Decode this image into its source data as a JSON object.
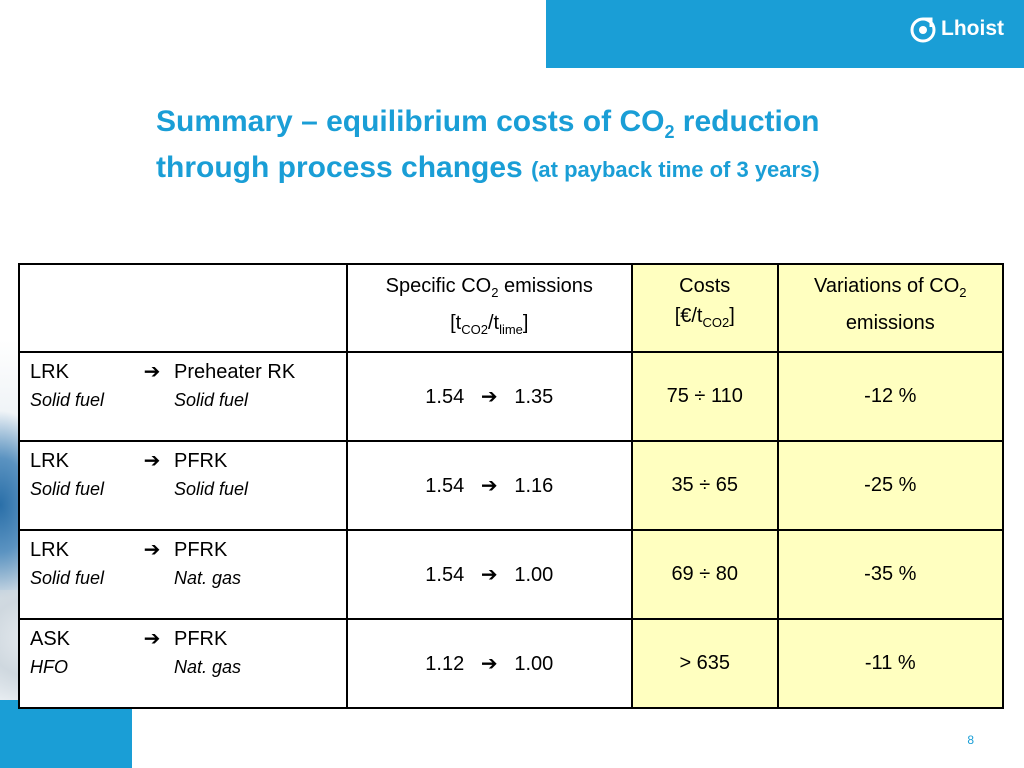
{
  "brand": {
    "logo_text": "Lhoist",
    "color": "#1a9ed6"
  },
  "title": {
    "line1_main": "Summary – equilibrium costs of CO",
    "line1_sub": "2",
    "line1_end": " reduction",
    "line2_main": "through process changes ",
    "line2_small": "(at payback time of 3 years)"
  },
  "table": {
    "headers": {
      "emissions_a": "Specific CO",
      "emissions_a_sub": "2",
      "emissions_a_end": " emissions",
      "emissions_b_open": "[t",
      "emissions_b_sub1": "CO2",
      "emissions_b_mid": "/t",
      "emissions_b_sub2": "lime",
      "emissions_b_close": "]",
      "costs_a": "Costs",
      "costs_b_open": "[€/t",
      "costs_b_sub": "CO2",
      "costs_b_close": "]",
      "var_a": "Variations of CO",
      "var_a_sub": "2",
      "var_b": "emissions"
    },
    "rows": [
      {
        "from": "LRK",
        "to": "Preheater RK",
        "from_fuel": "Solid fuel",
        "to_fuel": "Solid fuel",
        "emissions_from": "1.54",
        "emissions_to": "1.35",
        "costs": "75 ÷ 110",
        "variation": "-12 %"
      },
      {
        "from": "LRK",
        "to": "PFRK",
        "from_fuel": "Solid fuel",
        "to_fuel": "Solid fuel",
        "emissions_from": "1.54",
        "emissions_to": "1.16",
        "costs": "35 ÷ 65",
        "variation": "-25 %"
      },
      {
        "from": "LRK",
        "to": "PFRK",
        "from_fuel": "Solid fuel",
        "to_fuel": "Nat. gas",
        "emissions_from": "1.54",
        "emissions_to": "1.00",
        "costs": "69 ÷ 80",
        "variation": "-35 %"
      },
      {
        "from": "ASK",
        "to": "PFRK",
        "from_fuel": "HFO",
        "to_fuel": "Nat. gas",
        "emissions_from": "1.12",
        "emissions_to": "1.00",
        "costs": "> 635",
        "variation": "-11 %"
      }
    ],
    "arrow": "➔",
    "highlight_color": "#ffffc0"
  },
  "page_number": "8"
}
